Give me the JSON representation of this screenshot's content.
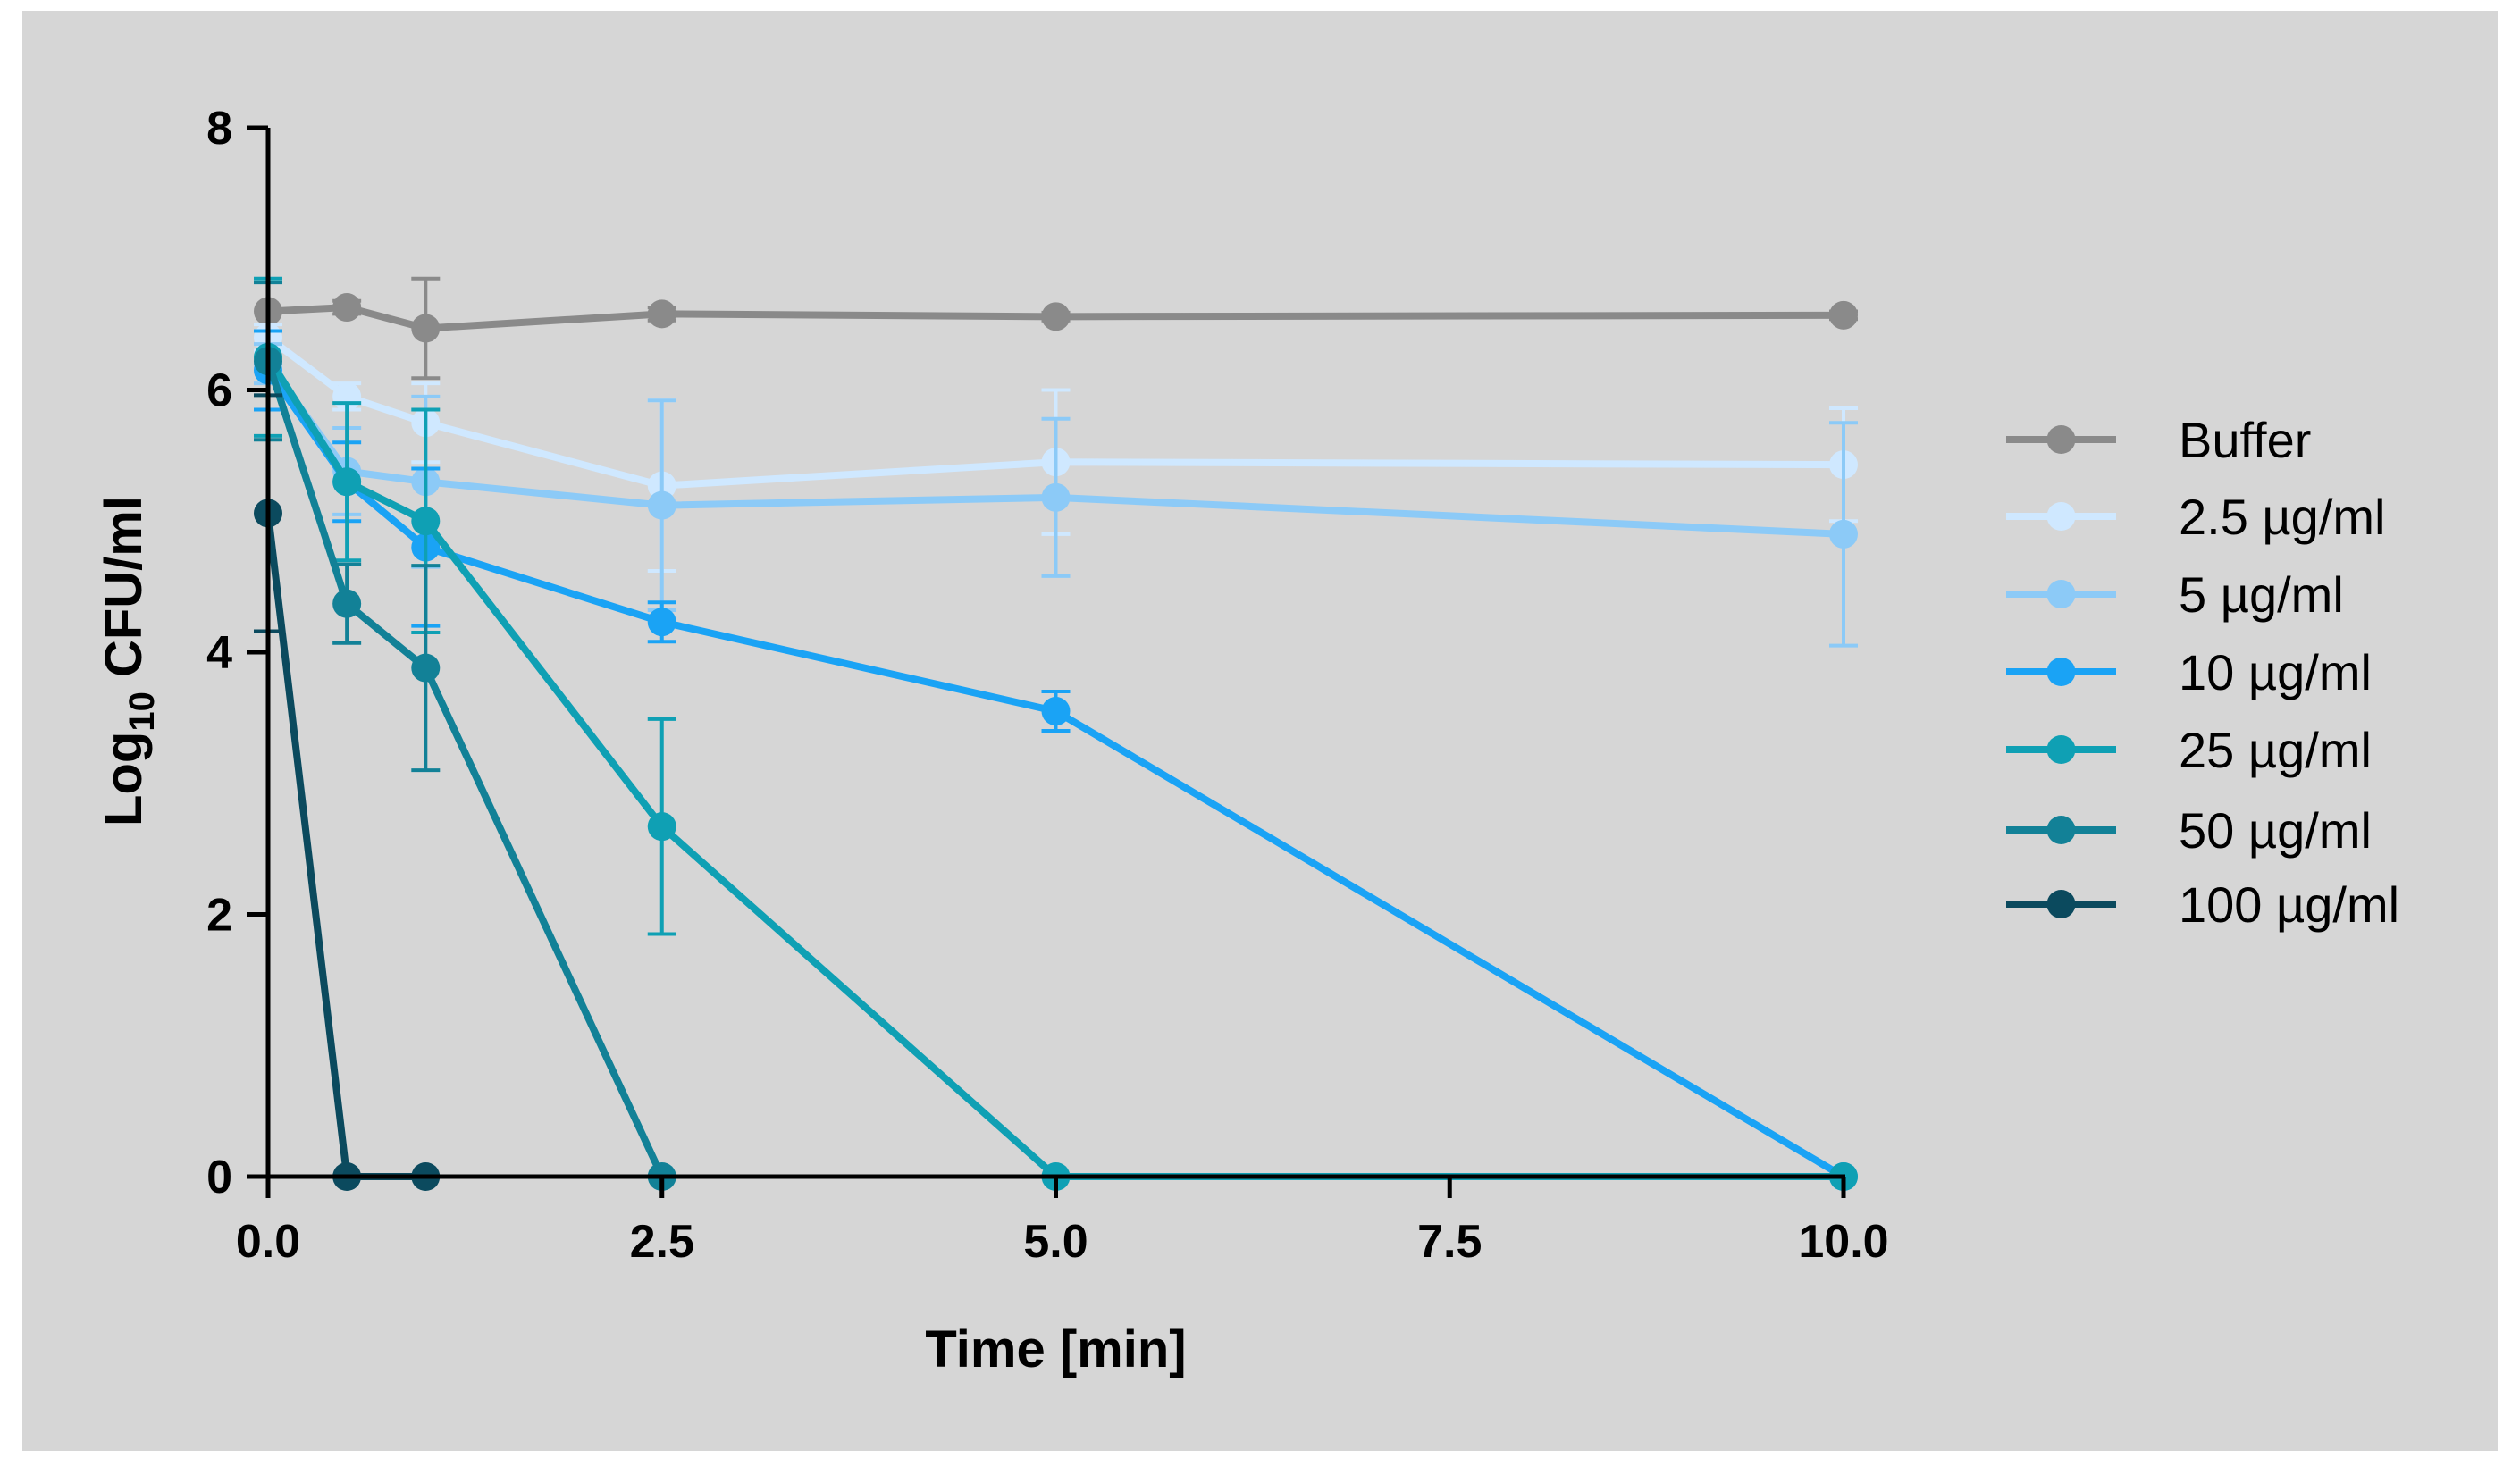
{
  "chart_data": {
    "type": "line",
    "title": "",
    "xlabel": "Time [min]",
    "ylabel": {
      "base": "Log",
      "subscript": "10",
      "rest": " CFU/ml"
    },
    "xlim": [
      0,
      10
    ],
    "ylim": [
      0,
      8
    ],
    "xticks": [
      0,
      2.5,
      5,
      7.5,
      10
    ],
    "xtick_labels": [
      "0.0",
      "2.5",
      "5.0",
      "7.5",
      "10.0"
    ],
    "yticks": [
      0,
      2,
      4,
      6,
      8
    ],
    "ytick_labels": [
      "0",
      "2",
      "4",
      "6",
      "8"
    ],
    "grid": false,
    "legend_position": "right",
    "series": [
      {
        "name": "Buffer",
        "color": "#8a8a8a",
        "x": [
          0,
          0.5,
          1,
          2.5,
          5,
          10
        ],
        "y": [
          6.6,
          6.63,
          6.47,
          6.58,
          6.56,
          6.57
        ],
        "err": [
          0,
          0.05,
          0.38,
          0.05,
          0.03,
          0.03
        ]
      },
      {
        "name": "2.5 µg/ml",
        "color": "#cfe8ff",
        "x": [
          0,
          0.5,
          1,
          2.5,
          5,
          10
        ],
        "y": [
          6.4,
          5.95,
          5.75,
          5.27,
          5.45,
          5.43
        ],
        "err": [
          0.1,
          0.1,
          0.3,
          0.65,
          0.55,
          0.43
        ]
      },
      {
        "name": "5 µg/ml",
        "color": "#8ccaf7",
        "x": [
          0,
          0.5,
          1,
          2.5,
          5,
          10
        ],
        "y": [
          6.2,
          5.38,
          5.3,
          5.12,
          5.18,
          4.9
        ],
        "err": [
          0.15,
          0.33,
          0.65,
          0.8,
          0.6,
          0.85
        ]
      },
      {
        "name": "10 µg/ml",
        "color": "#1aa3f5",
        "x": [
          0,
          0.5,
          1,
          2.5,
          5,
          10
        ],
        "y": [
          6.15,
          5.3,
          4.8,
          4.23,
          3.55,
          0
        ],
        "err": [
          0.3,
          0.3,
          0.6,
          0.15,
          0.15,
          0
        ]
      },
      {
        "name": "25 µg/ml",
        "color": "#0fa0b4",
        "x": [
          0,
          0.5,
          1,
          2.5,
          5,
          10
        ],
        "y": [
          6.25,
          5.3,
          5.0,
          2.67,
          0,
          0
        ],
        "err": [
          0.6,
          0.6,
          0.85,
          0.82,
          0,
          0
        ]
      },
      {
        "name": "50 µg/ml",
        "color": "#128197",
        "x": [
          0,
          0.5,
          1,
          2.5
        ],
        "y": [
          6.22,
          4.37,
          3.88,
          0
        ],
        "err": [
          0.6,
          0.3,
          0.78,
          0
        ]
      },
      {
        "name": "100 µg/ml",
        "color": "#0b4a5e",
        "x": [
          0,
          0.5,
          1
        ],
        "y": [
          5.06,
          0,
          0
        ],
        "err": [
          0.9,
          0,
          0
        ]
      }
    ]
  }
}
